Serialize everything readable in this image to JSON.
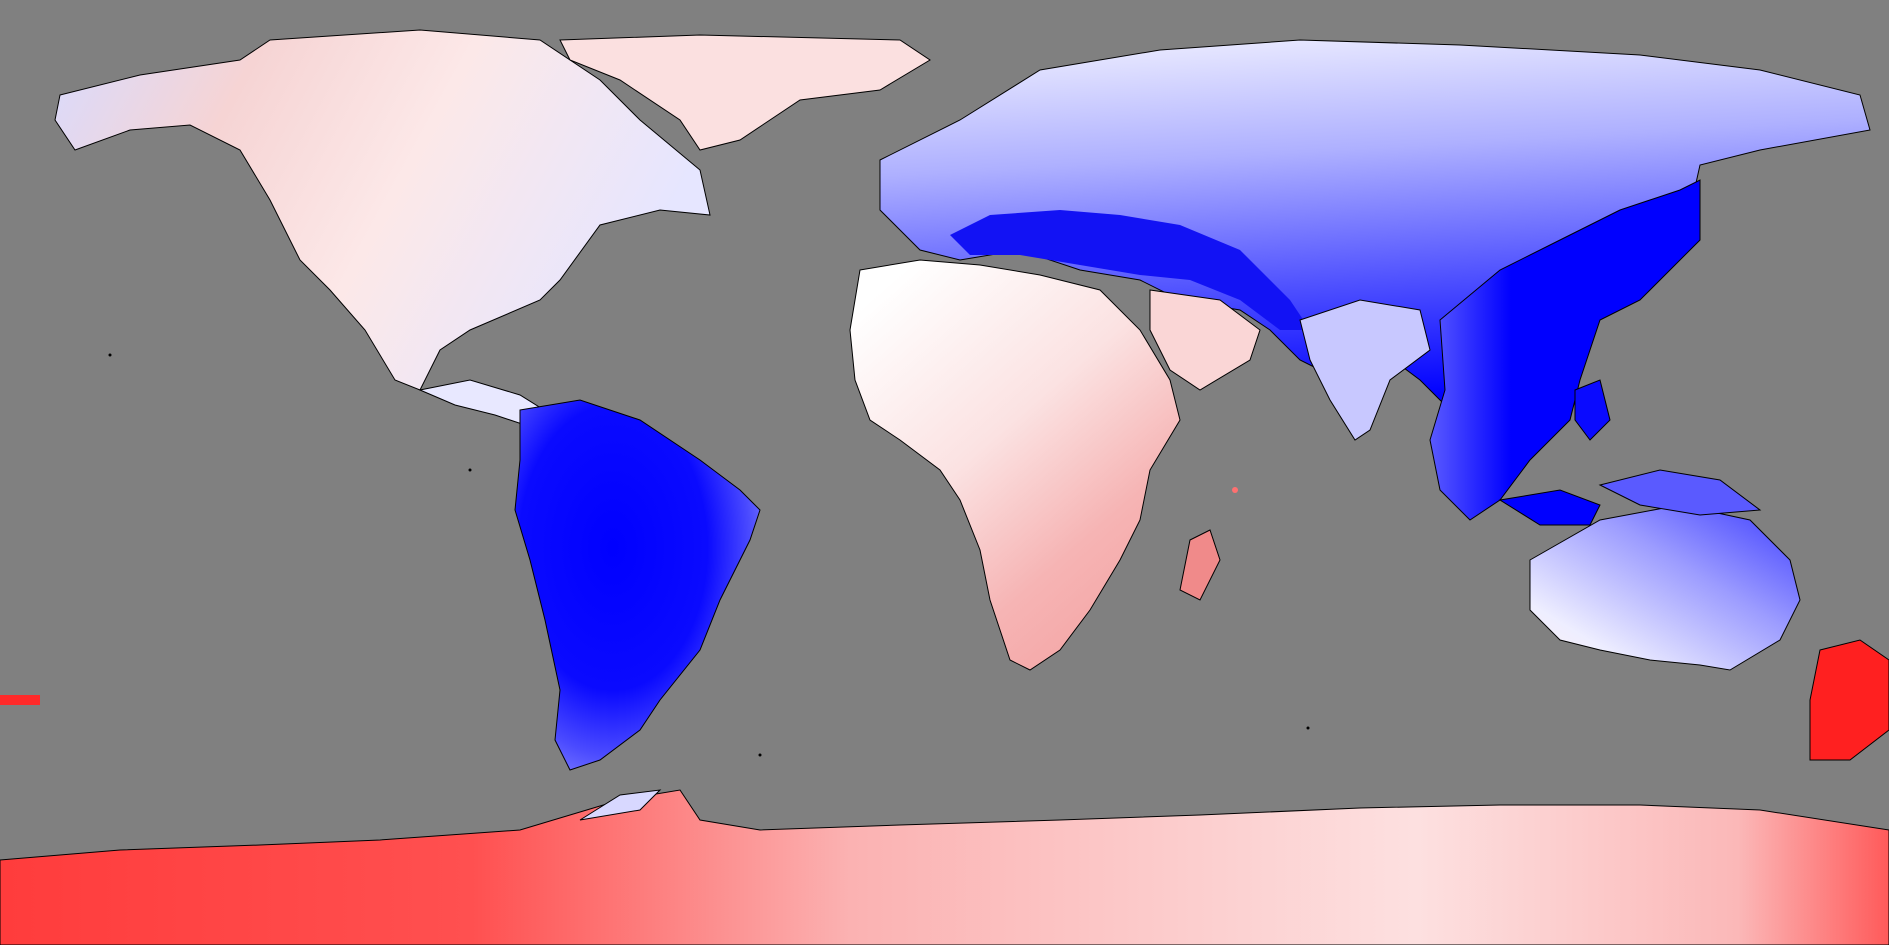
{
  "map": {
    "projection": "equirectangular",
    "extent": {
      "lon": [
        -180,
        180
      ],
      "lat": [
        -90,
        90
      ]
    },
    "ocean_fill": "#808080",
    "coastline_color": "#000000",
    "colormap": {
      "type": "diverging",
      "negative_color": "#0000ff",
      "neutral_color": "#ffffff",
      "positive_color": "#ff0000",
      "discrete_bands": true
    },
    "legend": null,
    "title": null
  },
  "regions": [
    {
      "name": "north-america-west",
      "value": "weak-positive",
      "color": "#f7d0d0"
    },
    {
      "name": "north-america-east",
      "value": "weak-negative",
      "color": "#e6e6ff"
    },
    {
      "name": "greenland",
      "value": "weak-positive",
      "color": "#fbe0e0"
    },
    {
      "name": "south-america",
      "value": "strong-negative",
      "color": "#0000ff"
    },
    {
      "name": "europe-mediterranean",
      "value": "strong-negative",
      "color": "#1010f5"
    },
    {
      "name": "north-africa",
      "value": "neutral",
      "color": "#f4f4ff"
    },
    {
      "name": "east-africa",
      "value": "weak-positive",
      "color": "#f3a8a8"
    },
    {
      "name": "southern-africa",
      "value": "weak-positive",
      "color": "#f8c8c8"
    },
    {
      "name": "madagascar",
      "value": "positive",
      "color": "#f08a8a"
    },
    {
      "name": "siberia",
      "value": "moderate-negative",
      "color": "#7a7aff"
    },
    {
      "name": "east-asia",
      "value": "strong-negative",
      "color": "#0000ff"
    },
    {
      "name": "maritime-continent",
      "value": "strong-negative",
      "color": "#0000f0"
    },
    {
      "name": "australia-north",
      "value": "moderate-negative",
      "color": "#6a6aff"
    },
    {
      "name": "australia-southwest",
      "value": "neutral",
      "color": "#fff4f4"
    },
    {
      "name": "new-zealand",
      "value": "strong-positive",
      "color": "#ff2020"
    },
    {
      "name": "antarctica-west",
      "value": "strong-positive",
      "color": "#ff4040"
    },
    {
      "name": "antarctica-east",
      "value": "weak-positive",
      "color": "#fcc4c4"
    }
  ]
}
